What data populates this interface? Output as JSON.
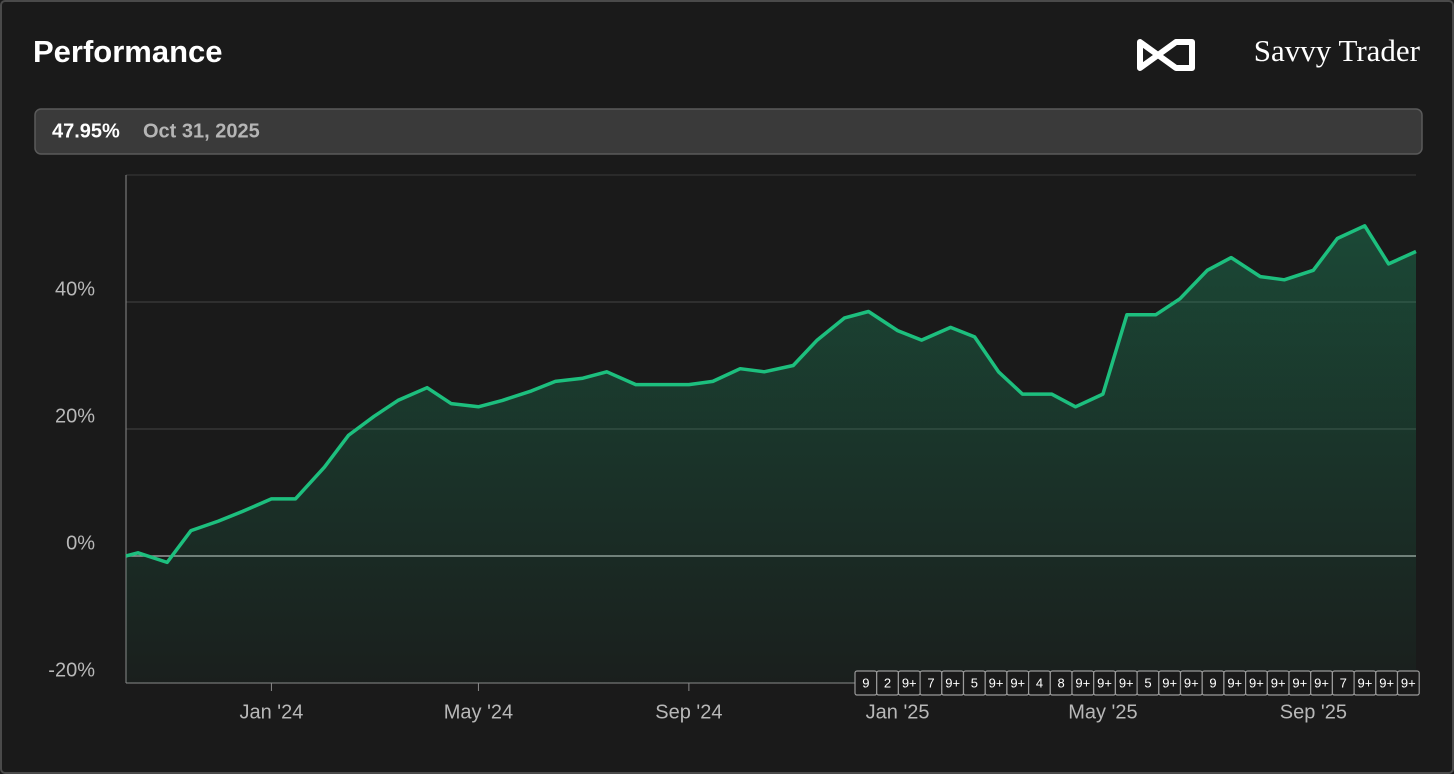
{
  "header": {
    "title": "Performance",
    "brand": "Savvy Trader"
  },
  "summary": {
    "value_label": "47.95%",
    "date": "Oct 31, 2025"
  },
  "chart_data": {
    "type": "area",
    "x": [
      "2023-10-08",
      "2023-10-15",
      "2023-11-01",
      "2023-11-15",
      "2023-12-01",
      "2023-12-15",
      "2024-01-01",
      "2024-01-15",
      "2024-02-01",
      "2024-02-15",
      "2024-03-01",
      "2024-03-15",
      "2024-04-01",
      "2024-04-15",
      "2024-05-01",
      "2024-05-15",
      "2024-06-01",
      "2024-06-15",
      "2024-07-01",
      "2024-07-15",
      "2024-08-01",
      "2024-08-15",
      "2024-09-01",
      "2024-09-15",
      "2024-10-01",
      "2024-10-15",
      "2024-11-01",
      "2024-11-15",
      "2024-12-01",
      "2024-12-15",
      "2025-01-01",
      "2025-01-15",
      "2025-02-01",
      "2025-02-15",
      "2025-03-01",
      "2025-03-15",
      "2025-04-01",
      "2025-04-15",
      "2025-05-01",
      "2025-05-15",
      "2025-06-01",
      "2025-06-15",
      "2025-07-01",
      "2025-07-15",
      "2025-08-01",
      "2025-08-15",
      "2025-09-01",
      "2025-09-15",
      "2025-10-01",
      "2025-10-15",
      "2025-10-31"
    ],
    "series": [
      {
        "color": "#1dbf7e",
        "values": [
          0,
          0.5,
          -1,
          4,
          5.5,
          7,
          9,
          9,
          14,
          19,
          22,
          24.5,
          26.5,
          24,
          23.5,
          24.5,
          26,
          27.5,
          28,
          29,
          27,
          27,
          27,
          27.5,
          29.5,
          29,
          30,
          34,
          37.5,
          38.5,
          35.5,
          34,
          36,
          34.5,
          29,
          25.5,
          25.5,
          23.5,
          25.5,
          38,
          38,
          40.5,
          45,
          47,
          44,
          43.5,
          45,
          50,
          52,
          46,
          47.95
        ]
      }
    ],
    "xlim": [
      "2023-10-08",
      "2025-10-31"
    ],
    "xticks": [
      {
        "value": "2024-01-01",
        "label": "Jan '24"
      },
      {
        "value": "2024-05-01",
        "label": "May '24"
      },
      {
        "value": "2024-09-01",
        "label": "Sep '24"
      },
      {
        "value": "2025-01-01",
        "label": "Jan '25"
      },
      {
        "value": "2025-05-01",
        "label": "May '25"
      },
      {
        "value": "2025-09-01",
        "label": "Sep '25"
      }
    ],
    "ylim": [
      -20,
      60
    ],
    "yticks": [
      {
        "value": -20,
        "label": "-20%"
      },
      {
        "value": 0,
        "label": "0%"
      },
      {
        "value": 20,
        "label": "20%"
      },
      {
        "value": 40,
        "label": "40%"
      }
    ],
    "grid": true,
    "event_markers": [
      "9",
      "2",
      "9+",
      "7",
      "9+",
      "5",
      "9+",
      "9+",
      "4",
      "8",
      "9+",
      "9+",
      "9+",
      "5",
      "9+",
      "9+",
      "9",
      "9+",
      "9+",
      "9+",
      "9+",
      "9+",
      "7",
      "9+",
      "9+",
      "9+"
    ]
  }
}
